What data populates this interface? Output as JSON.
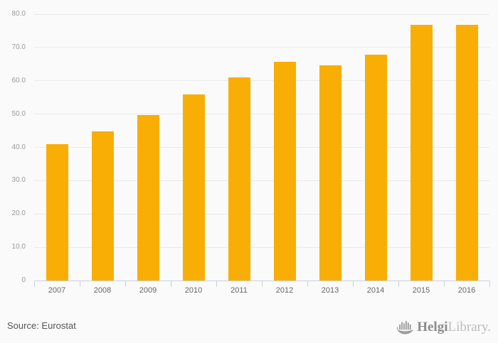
{
  "chart_data": {
    "type": "bar",
    "title": "",
    "xlabel": "",
    "ylabel": "",
    "categories": [
      "2007",
      "2008",
      "2009",
      "2010",
      "2011",
      "2012",
      "2013",
      "2014",
      "2015",
      "2016"
    ],
    "values": [
      41.0,
      44.8,
      49.8,
      55.9,
      61.0,
      65.7,
      64.7,
      67.9,
      76.9,
      76.9
    ],
    "ylim": [
      0,
      80
    ],
    "yticks": [
      {
        "value": 0,
        "label": "0"
      },
      {
        "value": 10,
        "label": "10.0"
      },
      {
        "value": 20,
        "label": "20.0"
      },
      {
        "value": 30,
        "label": "30.0"
      },
      {
        "value": 40,
        "label": "40.0"
      },
      {
        "value": 50,
        "label": "50.0"
      },
      {
        "value": 60,
        "label": "60.0"
      },
      {
        "value": 70,
        "label": "70.0"
      },
      {
        "value": 80,
        "label": "80.0"
      }
    ],
    "grid": true,
    "legend_position": "none",
    "bar_color": "#F9AE06",
    "axis_color": "#C9D2DF",
    "gridline_color": "#E9E9E9",
    "background_color": "#FAFAFA"
  },
  "footer": {
    "source_label": "Source: Eurostat",
    "logo": {
      "brand_bold": "Helgi",
      "brand_light": "Library.",
      "icon": "viking-ship-bar-chart-icon"
    }
  }
}
